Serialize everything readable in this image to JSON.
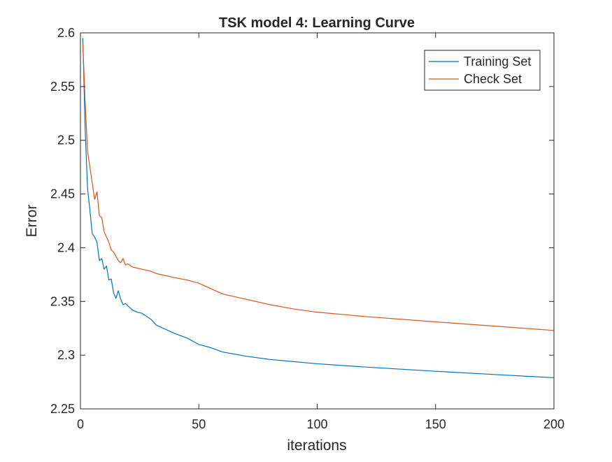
{
  "chart_data": {
    "type": "line",
    "title": "TSK model 4: Learning Curve",
    "xlabel": "iterations",
    "ylabel": "Error",
    "xlim": [
      0,
      200
    ],
    "ylim": [
      2.25,
      2.6
    ],
    "xticks": [
      0,
      50,
      100,
      150,
      200
    ],
    "xtick_labels": [
      "0",
      "50",
      "100",
      "150",
      "200"
    ],
    "yticks": [
      2.25,
      2.3,
      2.35,
      2.4,
      2.45,
      2.5,
      2.55,
      2.6
    ],
    "ytick_labels": [
      "2.25",
      "2.3",
      "2.35",
      "2.4",
      "2.45",
      "2.5",
      "2.55",
      "2.6"
    ],
    "grid": false,
    "legend_position": "top-right",
    "series": [
      {
        "name": "Training Set",
        "color": "#0072BD",
        "x": [
          1,
          2,
          3,
          4,
          5,
          6,
          7,
          8,
          9,
          10,
          11,
          12,
          13,
          14,
          15,
          16,
          17,
          18,
          19,
          20,
          22,
          24,
          26,
          28,
          30,
          32,
          34,
          36,
          38,
          40,
          45,
          50,
          55,
          60,
          70,
          80,
          90,
          100,
          120,
          150,
          175,
          200
        ],
        "y": [
          2.595,
          2.51,
          2.455,
          2.435,
          2.413,
          2.41,
          2.405,
          2.388,
          2.39,
          2.38,
          2.383,
          2.37,
          2.371,
          2.358,
          2.353,
          2.36,
          2.352,
          2.347,
          2.348,
          2.346,
          2.342,
          2.34,
          2.339,
          2.336,
          2.333,
          2.328,
          2.326,
          2.324,
          2.322,
          2.32,
          2.316,
          2.31,
          2.307,
          2.303,
          2.299,
          2.296,
          2.294,
          2.292,
          2.289,
          2.285,
          2.282,
          2.279
        ]
      },
      {
        "name": "Check Set",
        "color": "#D95319",
        "x": [
          1,
          2,
          3,
          4,
          5,
          6,
          7,
          8,
          9,
          10,
          11,
          12,
          13,
          14,
          15,
          16,
          17,
          18,
          19,
          20,
          22,
          24,
          26,
          28,
          30,
          32,
          34,
          36,
          38,
          40,
          45,
          50,
          55,
          60,
          70,
          80,
          90,
          100,
          120,
          150,
          175,
          200
        ],
        "y": [
          2.59,
          2.535,
          2.49,
          2.475,
          2.46,
          2.445,
          2.452,
          2.43,
          2.428,
          2.415,
          2.41,
          2.405,
          2.398,
          2.396,
          2.392,
          2.388,
          2.386,
          2.39,
          2.384,
          2.385,
          2.382,
          2.381,
          2.38,
          2.379,
          2.378,
          2.376,
          2.375,
          2.374,
          2.373,
          2.372,
          2.37,
          2.367,
          2.362,
          2.357,
          2.352,
          2.347,
          2.343,
          2.34,
          2.336,
          2.331,
          2.327,
          2.323
        ]
      }
    ]
  }
}
